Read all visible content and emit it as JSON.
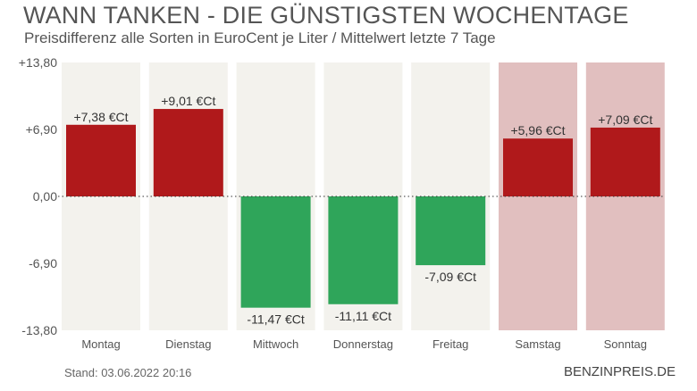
{
  "title": "WANN TANKEN - DIE GÜNSTIGSTEN WOCHENTAGE",
  "subtitle": "Preisdifferenz alle Sorten in EuroCent je Liter / Mittelwert letzte 7 Tage",
  "footer": {
    "stand": "Stand: 03.06.2022 20:16",
    "brand": "BENZINPREIS.DE"
  },
  "colors": {
    "positive": "#b0191b",
    "negative": "#2fa55a",
    "weekday_bg": "#f3f2ed",
    "weekend_bg": "#e1bfbf"
  },
  "chart_data": {
    "type": "bar",
    "title": "WANN TANKEN - DIE GÜNSTIGSTEN WOCHENTAGE",
    "subtitle": "Preisdifferenz alle Sorten in EuroCent je Liter / Mittelwert letzte 7 Tage",
    "categories": [
      "Montag",
      "Dienstag",
      "Mittwoch",
      "Donnerstag",
      "Freitag",
      "Samstag",
      "Sonntag"
    ],
    "values": [
      7.38,
      9.01,
      -11.47,
      -11.11,
      -7.09,
      5.96,
      7.09
    ],
    "value_labels": [
      "+7,38 €Ct",
      "+9,01 €Ct",
      "-11,47 €Ct",
      "-11,11 €Ct",
      "-7,09 €Ct",
      "+5,96 €Ct",
      "+7,09 €Ct"
    ],
    "weekend": [
      false,
      false,
      false,
      false,
      false,
      true,
      true
    ],
    "ylim": [
      -13.8,
      13.8
    ],
    "yticks": [
      13.8,
      6.9,
      0,
      -6.9,
      -13.8
    ],
    "ytick_labels": [
      "+13,80",
      "+6,90",
      "0,00",
      "-6,90",
      "-13,80"
    ],
    "xlabel": "",
    "ylabel": ""
  }
}
